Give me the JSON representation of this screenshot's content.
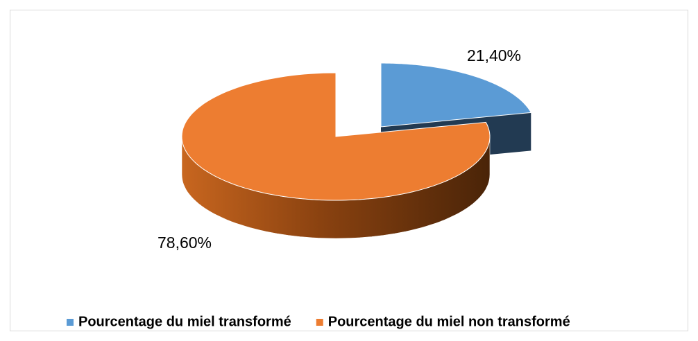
{
  "chart_data": {
    "type": "pie",
    "categories": [
      "Pourcentage du miel transformé",
      "Pourcentage du miel non transformé"
    ],
    "values": [
      21.4,
      78.6
    ],
    "value_labels": [
      "21,40%",
      "78,60%"
    ],
    "colors": [
      "#5b9bd5",
      "#ed7d31"
    ],
    "exploded": [
      true,
      false
    ],
    "legend": "bottom"
  }
}
